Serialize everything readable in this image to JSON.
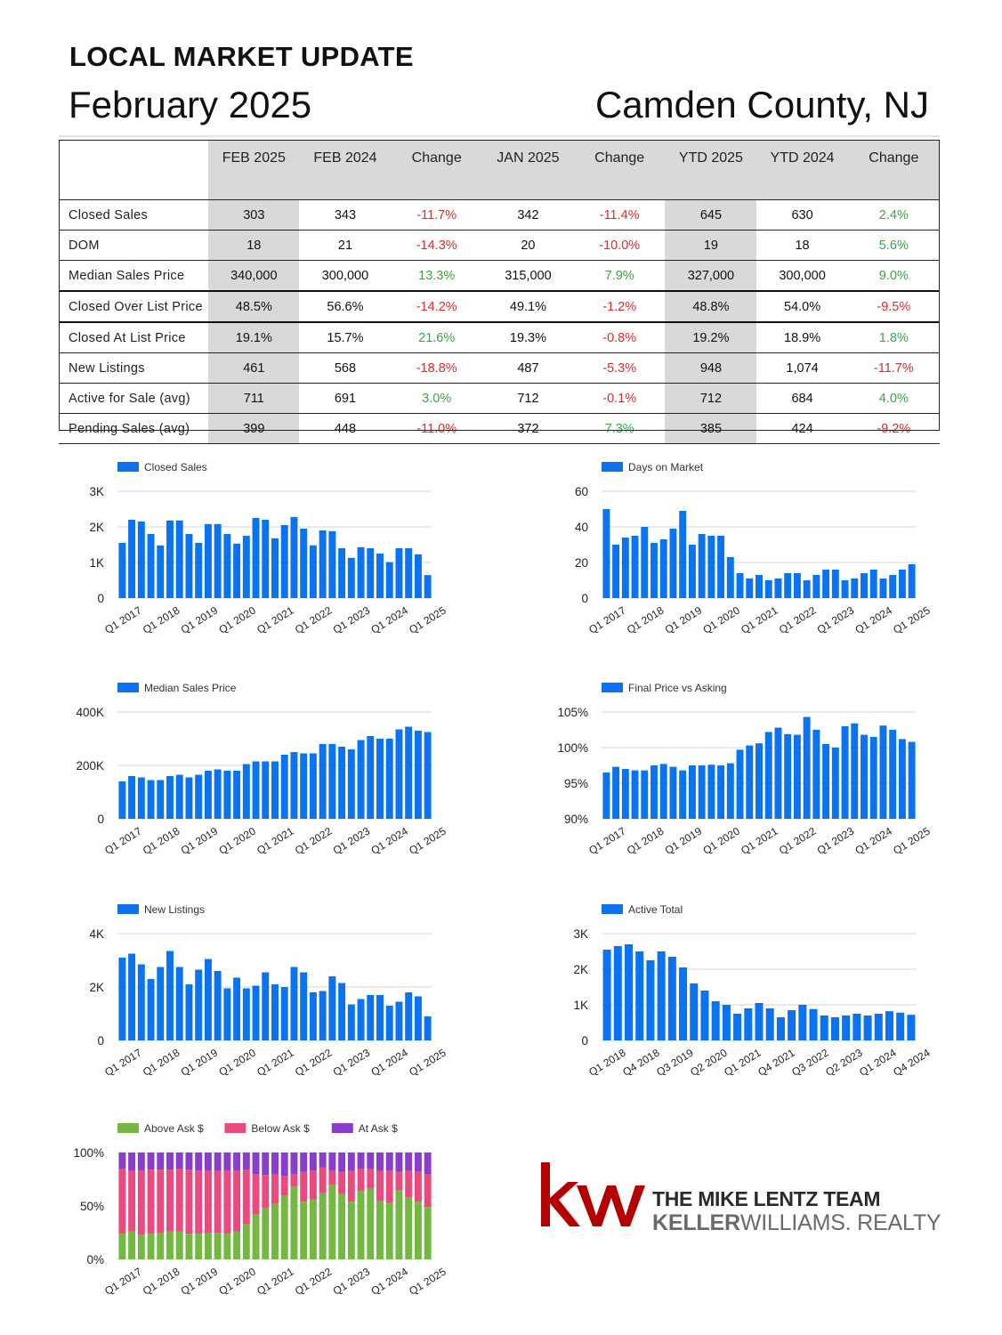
{
  "header": {
    "heading": "LOCAL MARKET UPDATE",
    "month": "February 2025",
    "region": "Camden County, NJ"
  },
  "stats": {
    "columns": [
      "FEB 2025",
      "FEB 2024",
      "Change",
      "JAN 2025",
      "Change",
      "YTD 2025",
      "YTD 2024",
      "Change"
    ],
    "rows": [
      {
        "label": "Closed Sales",
        "values": [
          "303",
          "343",
          "-11.7%",
          "342",
          "-11.4%",
          "645",
          "630",
          "2.4%"
        ]
      },
      {
        "label": "DOM",
        "values": [
          "18",
          "21",
          "-14.3%",
          "20",
          "-10.0%",
          "19",
          "18",
          "5.6%"
        ]
      },
      {
        "label": "Median Sales Price",
        "values": [
          "340,000",
          "300,000",
          "13.3%",
          "315,000",
          "7.9%",
          "327,000",
          "300,000",
          "9.0%"
        ]
      },
      {
        "label": "Closed Over List Price",
        "values": [
          "48.5%",
          "56.6%",
          "-14.2%",
          "49.1%",
          "-1.2%",
          "48.8%",
          "54.0%",
          "-9.5%"
        ]
      },
      {
        "label": "Closed At List Price",
        "values": [
          "19.1%",
          "15.7%",
          "21.6%",
          "19.3%",
          "-0.8%",
          "19.2%",
          "18.9%",
          "1.8%"
        ]
      },
      {
        "label": "New Listings",
        "values": [
          "461",
          "568",
          "-18.8%",
          "487",
          "-5.3%",
          "948",
          "1,074",
          "-11.7%"
        ]
      },
      {
        "label": "Active for Sale (avg)",
        "values": [
          "711",
          "691",
          "3.0%",
          "712",
          "-0.1%",
          "712",
          "684",
          "4.0%"
        ]
      },
      {
        "label": "Pending Sales (avg)",
        "values": [
          "399",
          "448",
          "-11.0%",
          "372",
          "7.3%",
          "385",
          "424",
          "-9.2%"
        ]
      }
    ],
    "colors": {
      "positive": "#3aa744",
      "negative": "#dd2b2b",
      "shade": "#d9d9d9"
    }
  },
  "chart_data": [
    {
      "type": "bar",
      "legend": [
        "Closed Sales"
      ],
      "colors": [
        "#0b73f0"
      ],
      "y_ticks": [
        "0",
        "1K",
        "2K",
        "3K"
      ],
      "ylim": [
        0,
        3000
      ],
      "x_tick_labels": [
        "Q1 2017",
        "Q1 2018",
        "Q1 2019",
        "Q1 2020",
        "Q1 2021",
        "Q1 2022",
        "Q1 2023",
        "Q1 2024",
        "Q1 2025"
      ],
      "series": [
        {
          "name": "Closed Sales",
          "values": [
            1550,
            2200,
            2150,
            1800,
            1480,
            2180,
            2180,
            1800,
            1550,
            2080,
            2080,
            1800,
            1530,
            1750,
            2250,
            2200,
            1680,
            2050,
            2280,
            1950,
            1480,
            1900,
            1880,
            1400,
            1130,
            1430,
            1400,
            1250,
            1010,
            1400,
            1400,
            1230,
            645
          ]
        }
      ]
    },
    {
      "type": "bar",
      "legend": [
        "Days on Market"
      ],
      "colors": [
        "#0b73f0"
      ],
      "y_ticks": [
        "0",
        "20",
        "40",
        "60"
      ],
      "ylim": [
        0,
        60
      ],
      "x_tick_labels": [
        "Q1 2017",
        "Q1 2018",
        "Q1 2019",
        "Q1 2020",
        "Q1 2021",
        "Q1 2022",
        "Q1 2023",
        "Q1 2024",
        "Q1 2025"
      ],
      "series": [
        {
          "name": "Days on Market",
          "values": [
            50,
            30,
            34,
            35,
            40,
            31,
            33,
            39,
            49,
            30,
            36,
            35,
            35,
            23,
            14,
            11,
            13,
            10,
            11,
            14,
            14,
            10,
            13,
            16,
            16,
            10,
            11,
            14,
            16,
            11,
            13,
            16,
            19
          ]
        }
      ]
    },
    {
      "type": "bar",
      "legend": [
        "Median Sales Price"
      ],
      "colors": [
        "#0b73f0"
      ],
      "y_ticks": [
        "0",
        "200K",
        "400K"
      ],
      "ylim": [
        0,
        400000
      ],
      "x_tick_labels": [
        "Q1 2017",
        "Q1 2018",
        "Q1 2019",
        "Q1 2020",
        "Q1 2021",
        "Q1 2022",
        "Q1 2023",
        "Q1 2024",
        "Q1 2025"
      ],
      "series": [
        {
          "name": "Median Sales Price",
          "values": [
            140000,
            160000,
            155000,
            145000,
            145000,
            160000,
            165000,
            155000,
            165000,
            180000,
            185000,
            180000,
            180000,
            205000,
            215000,
            215000,
            215000,
            240000,
            250000,
            245000,
            245000,
            280000,
            280000,
            270000,
            260000,
            295000,
            310000,
            300000,
            300000,
            335000,
            345000,
            330000,
            325000
          ]
        }
      ]
    },
    {
      "type": "bar",
      "legend": [
        "Final Price vs Asking"
      ],
      "colors": [
        "#0b73f0"
      ],
      "y_ticks": [
        "90%",
        "95%",
        "100%",
        "105%"
      ],
      "ylim": [
        90,
        105
      ],
      "x_tick_labels": [
        "Q1 2017",
        "Q1 2018",
        "Q1 2019",
        "Q1 2020",
        "Q1 2021",
        "Q1 2022",
        "Q1 2023",
        "Q1 2024",
        "Q1 2025"
      ],
      "series": [
        {
          "name": "Final Price vs Asking",
          "values": [
            96.5,
            97.3,
            97,
            96.8,
            96.8,
            97.5,
            97.7,
            97.3,
            96.8,
            97.5,
            97.5,
            97.6,
            97.5,
            97.8,
            99.7,
            100.3,
            100.6,
            102.2,
            102.8,
            101.9,
            101.8,
            104.3,
            102.5,
            100.5,
            100,
            103,
            103.4,
            101.8,
            101.5,
            103.1,
            102.5,
            101.2,
            100.8
          ]
        }
      ]
    },
    {
      "type": "bar",
      "legend": [
        "New Listings"
      ],
      "colors": [
        "#0b73f0"
      ],
      "y_ticks": [
        "0",
        "2K",
        "4K"
      ],
      "ylim": [
        0,
        4000
      ],
      "x_tick_labels": [
        "Q1 2017",
        "Q1 2018",
        "Q1 2019",
        "Q1 2020",
        "Q1 2021",
        "Q1 2022",
        "Q1 2023",
        "Q1 2024",
        "Q1 2025"
      ],
      "series": [
        {
          "name": "New Listings",
          "values": [
            3100,
            3250,
            2850,
            2300,
            2750,
            3350,
            2750,
            2100,
            2650,
            3050,
            2600,
            1950,
            2350,
            1950,
            2050,
            2550,
            2100,
            2000,
            2750,
            2550,
            1800,
            1850,
            2400,
            2150,
            1350,
            1550,
            1700,
            1700,
            1300,
            1450,
            1800,
            1650,
            900
          ]
        }
      ]
    },
    {
      "type": "bar",
      "legend": [
        "Active Total"
      ],
      "colors": [
        "#0b73f0"
      ],
      "y_ticks": [
        "0",
        "1K",
        "2K",
        "3K"
      ],
      "ylim": [
        0,
        3000
      ],
      "x_tick_labels": [
        "Q1 2018",
        "Q4 2018",
        "Q3 2019",
        "Q2 2020",
        "Q1 2021",
        "Q4 2021",
        "Q3 2022",
        "Q2 2023",
        "Q1 2024",
        "Q4 2024"
      ],
      "series": [
        {
          "name": "Active Total",
          "values": [
            2550,
            2650,
            2700,
            2500,
            2250,
            2500,
            2350,
            2050,
            1600,
            1400,
            1100,
            1000,
            750,
            900,
            1050,
            900,
            650,
            850,
            1000,
            880,
            700,
            650,
            700,
            750,
            700,
            750,
            820,
            780,
            720
          ]
        }
      ]
    },
    {
      "type": "bar",
      "stacked": true,
      "legend": [
        "Above Ask $",
        "Below Ask $",
        "At Ask $"
      ],
      "colors": [
        "#72b843",
        "#ea4a7e",
        "#8a3dcc"
      ],
      "y_ticks": [
        "0%",
        "50%",
        "100%"
      ],
      "ylim": [
        0,
        100
      ],
      "x_tick_labels": [
        "Q1 2017",
        "Q1 2018",
        "Q1 2019",
        "Q1 2020",
        "Q1 2021",
        "Q1 2022",
        "Q1 2023",
        "Q1 2024",
        "Q1 2025"
      ],
      "series": [
        {
          "name": "Above Ask $",
          "values": [
            24,
            26,
            23,
            24,
            25,
            26,
            26,
            24,
            24,
            25,
            25,
            24,
            26,
            33,
            42,
            48,
            52,
            60,
            68,
            54,
            56,
            62,
            70,
            61,
            54,
            64,
            66,
            55,
            53,
            65,
            58,
            54,
            49
          ]
        },
        {
          "name": "Below Ask $",
          "values": [
            61,
            57,
            60,
            60,
            59,
            58,
            59,
            60,
            59,
            58,
            58,
            59,
            57,
            51,
            38,
            31,
            28,
            18,
            12,
            28,
            27,
            24,
            13,
            21,
            29,
            21,
            19,
            28,
            30,
            17,
            25,
            28,
            31
          ]
        },
        {
          "name": "At Ask $",
          "values": [
            15,
            17,
            17,
            16,
            16,
            16,
            15,
            16,
            17,
            17,
            17,
            17,
            17,
            16,
            20,
            21,
            20,
            22,
            20,
            18,
            17,
            14,
            17,
            18,
            17,
            15,
            15,
            17,
            17,
            18,
            17,
            18,
            20
          ]
        }
      ]
    }
  ],
  "logo": {
    "mark": "kw",
    "team": "THE MIKE LENTZ TEAM",
    "brokerage_bold": "KELLER",
    "brokerage_rest": "WILLIAMS. REALTY",
    "color": "#b40101"
  }
}
